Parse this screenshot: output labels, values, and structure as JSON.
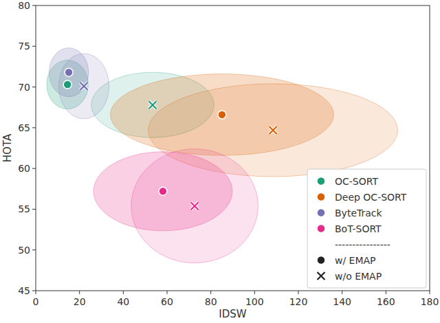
{
  "chart_data": {
    "type": "scatter",
    "x_label": "IDSW",
    "y_label": "HOTA",
    "xlim": [
      0,
      180
    ],
    "ylim": [
      45,
      80
    ],
    "xticks": [
      0,
      20,
      40,
      60,
      80,
      100,
      120,
      140,
      160,
      180
    ],
    "yticks": [
      45,
      50,
      55,
      60,
      65,
      70,
      75,
      80
    ],
    "grid": false,
    "legend": "lower right",
    "legend_separator": "----------------",
    "marker_legend": [
      {
        "label": "w/ EMAP",
        "marker": "circle"
      },
      {
        "label": "w/o EMAP",
        "marker": "x"
      }
    ],
    "series": [
      {
        "name": "OC-SORT",
        "color": "#1b9e77",
        "x": [
          14.5,
          53.4
        ],
        "values": [
          70.3,
          67.8
        ],
        "x_err": [
          9.5,
          28
        ],
        "y_err": [
          3.0,
          4.0
        ]
      },
      {
        "name": "Deep OC-SORT",
        "color": "#d95f02",
        "x": [
          85.1,
          108.4
        ],
        "values": [
          66.6,
          64.7
        ],
        "x_err": [
          51,
          57
        ],
        "y_err": [
          5.0,
          5.7
        ]
      },
      {
        "name": "ByteTrack",
        "color": "#7570b3",
        "x": [
          15.1,
          22.0
        ],
        "values": [
          71.8,
          70.1
        ],
        "x_err": [
          9.0,
          11.5
        ],
        "y_err": [
          3.0,
          4.0
        ]
      },
      {
        "name": "BoT-SORT",
        "color": "#e7298a",
        "x": [
          58.1,
          72.6
        ],
        "values": [
          57.2,
          55.4
        ],
        "x_err": [
          31.7,
          29
        ],
        "y_err": [
          4.85,
          7.0
        ]
      }
    ]
  }
}
